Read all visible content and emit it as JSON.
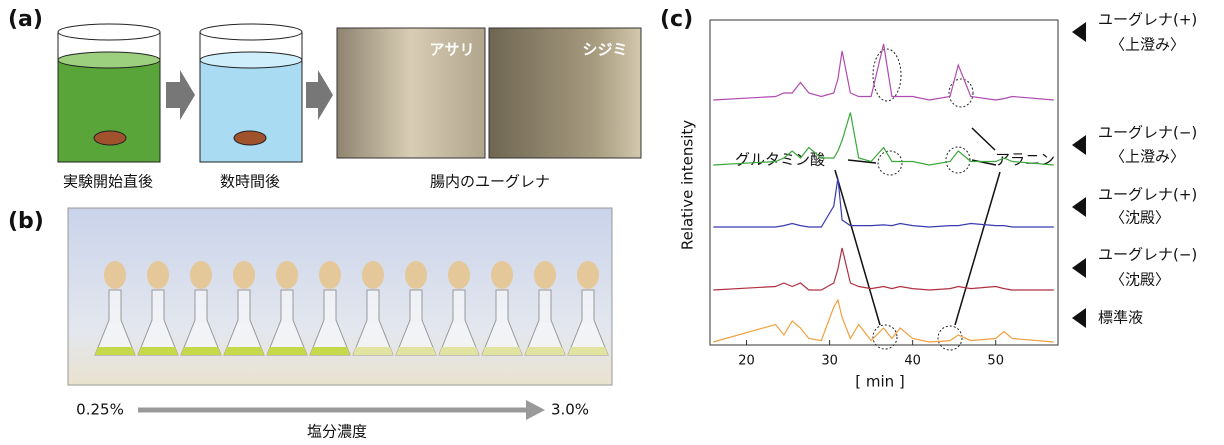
{
  "panels": {
    "a": {
      "label": "(a)",
      "captions": [
        "実験開始直後",
        "数時間後",
        "腸内のユーグレナ"
      ],
      "photo_labels": [
        "アサリ",
        "シジミ"
      ]
    },
    "b": {
      "label": "(b)",
      "start": "0.25%",
      "end": "3.0%",
      "axis_label": "塩分濃度"
    },
    "c": {
      "label": "(c)"
    }
  },
  "chart_data": {
    "type": "line",
    "x_label": "[ min ]",
    "y_label": "Relative intensity",
    "annotations": [
      "グルタミン酸",
      "アラニン"
    ],
    "xlim": [
      15.6,
      57.5
    ],
    "xticks": [
      20,
      30,
      40,
      50
    ],
    "ylim": [
      0,
      1
    ],
    "x": [
      16,
      23.5,
      24.5,
      25.5,
      26.5,
      27.5,
      29,
      30.5,
      31,
      31.5,
      32.5,
      33.5,
      35,
      36.5,
      37.5,
      38.5,
      40,
      42,
      44.5,
      45.5,
      47,
      50,
      51,
      52,
      57
    ],
    "series": [
      {
        "name": "ユーグレナ(+)",
        "condition": "〈上澄み〉",
        "color": "#b04bb0",
        "values": [
          0,
          0.05,
          0.1,
          0.1,
          0.25,
          0.1,
          0.05,
          0.1,
          0.3,
          0.7,
          0.1,
          0.05,
          0.05,
          0.8,
          0.05,
          0.05,
          0.05,
          0,
          0.05,
          0.5,
          0.05,
          0,
          0.02,
          0.05,
          0
        ]
      },
      {
        "name": "ユーグレナ(−)",
        "condition": "〈上澄み〉",
        "color": "#3aa83a",
        "values": [
          0,
          0.05,
          0.1,
          0.2,
          0.1,
          0.25,
          0.1,
          0.1,
          0.2,
          0.35,
          0.75,
          0.1,
          0.05,
          0.25,
          0.05,
          0.05,
          0.05,
          0,
          0.05,
          0.2,
          0.05,
          0.05,
          0.1,
          0.05,
          0
        ]
      },
      {
        "name": "ユーグレナ(+)",
        "condition": "〈沈殿〉",
        "color": "#3a3ab0",
        "values": [
          0,
          0,
          0.02,
          0.05,
          0.02,
          0,
          0,
          0.3,
          0.7,
          0.1,
          0.02,
          0.02,
          0.02,
          0.03,
          0.02,
          0.05,
          0.02,
          0,
          0.02,
          0.02,
          0.05,
          0.02,
          0.02,
          0,
          0
        ]
      },
      {
        "name": "ユーグレナ(−)",
        "condition": "〈沈殿〉",
        "color": "#b03040",
        "values": [
          0,
          0.05,
          0.1,
          0.05,
          0.1,
          0,
          0,
          0.1,
          0.3,
          0.6,
          0.1,
          0.05,
          0.02,
          0.05,
          0.02,
          0.05,
          0.02,
          0,
          0.02,
          0.05,
          0.02,
          0.05,
          0.02,
          0,
          0
        ]
      },
      {
        "name": "標準液",
        "color": "#f0a040",
        "values": [
          0,
          0.25,
          0.1,
          0.3,
          0.2,
          0.05,
          0.02,
          0.5,
          0.6,
          0.35,
          0.05,
          0.25,
          0.02,
          0.2,
          0.05,
          0.2,
          0.05,
          0,
          0.02,
          0.1,
          0.02,
          0.05,
          0.15,
          0.05,
          0
        ]
      }
    ]
  }
}
